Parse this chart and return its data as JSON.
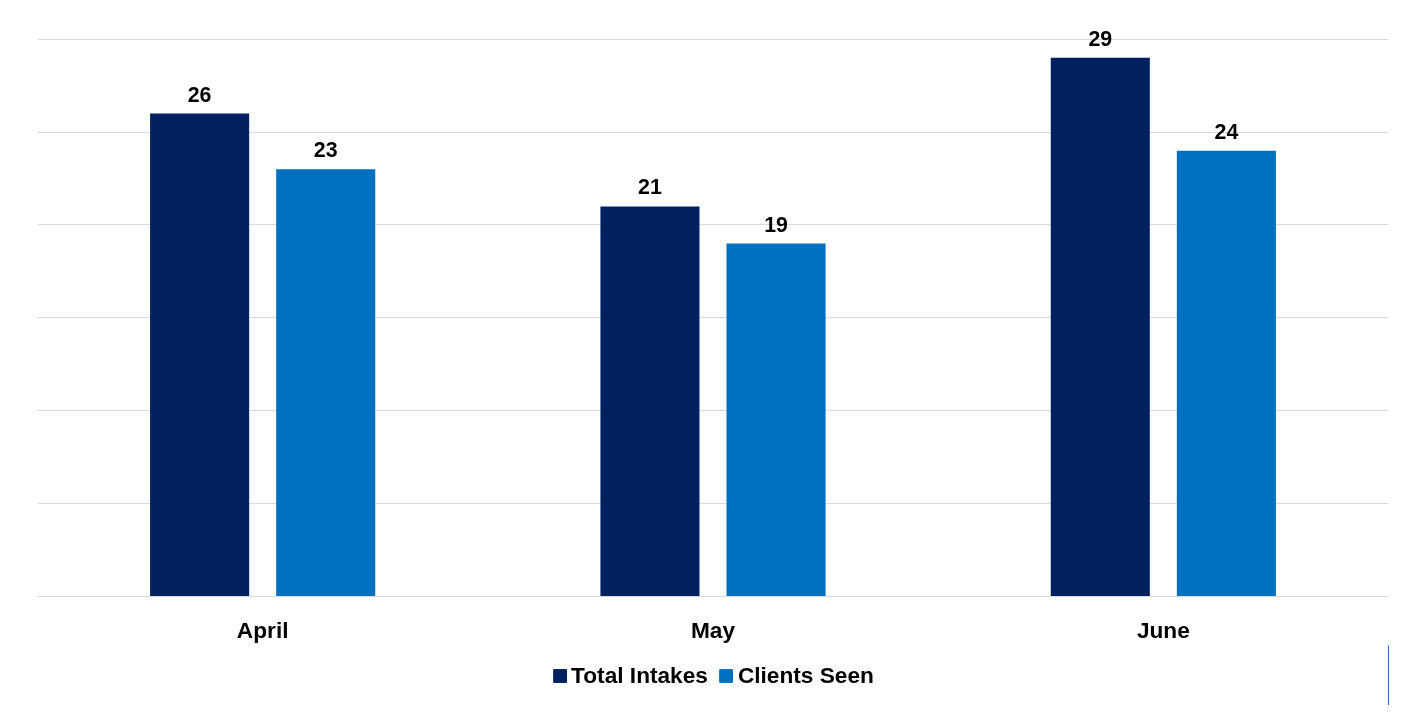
{
  "chart_data": {
    "type": "bar",
    "categories": [
      "April",
      "May",
      "June"
    ],
    "series": [
      {
        "name": "Total Intakes",
        "color": "#002060",
        "values": [
          26,
          21,
          29
        ]
      },
      {
        "name": "Clients Seen",
        "color": "#0070c0",
        "values": [
          23,
          19,
          24
        ]
      }
    ],
    "tick_labels": "x",
    "grid": "y",
    "legend": "bottom",
    "data_labels": true
  }
}
